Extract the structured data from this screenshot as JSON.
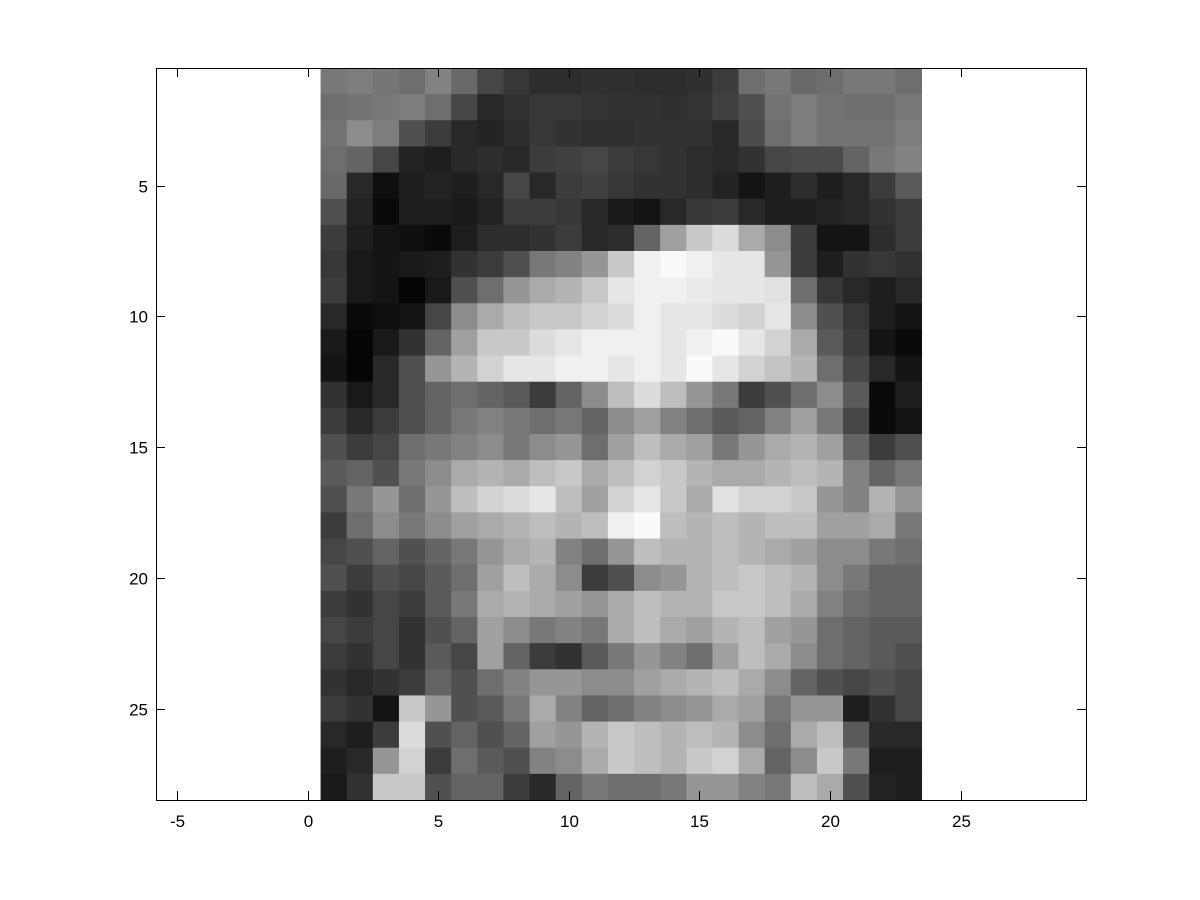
{
  "figure": {
    "background": "#ffffff"
  },
  "chart_data": {
    "type": "heatmap",
    "title": "",
    "xlabel": "",
    "ylabel": "",
    "colormap": "gray",
    "xlim": [
      -5.8,
      29.8
    ],
    "ylim": [
      0.5,
      28.5
    ],
    "y_direction": "reversed",
    "aspect": "equal",
    "grid": false,
    "box": true,
    "x_ticks": [
      -5,
      0,
      5,
      10,
      15,
      20,
      25
    ],
    "x_tick_labels": [
      "-5",
      "0",
      "5",
      "10",
      "15",
      "20",
      "25"
    ],
    "y_ticks": [
      5,
      10,
      15,
      20,
      25
    ],
    "y_tick_labels": [
      "5",
      "10",
      "15",
      "20",
      "25"
    ],
    "value_range": [
      0,
      255
    ],
    "columns": 23,
    "rows": 28,
    "values": [
      [
        120,
        125,
        118,
        110,
        130,
        105,
        70,
        55,
        45,
        45,
        48,
        48,
        45,
        45,
        48,
        60,
        110,
        120,
        105,
        110,
        120,
        120,
        110
      ],
      [
        110,
        115,
        120,
        125,
        110,
        70,
        40,
        50,
        55,
        55,
        52,
        50,
        50,
        48,
        52,
        65,
        80,
        115,
        125,
        115,
        110,
        110,
        120
      ],
      [
        115,
        140,
        125,
        80,
        60,
        40,
        35,
        45,
        55,
        50,
        48,
        48,
        50,
        50,
        50,
        40,
        75,
        110,
        125,
        115,
        115,
        115,
        125
      ],
      [
        110,
        100,
        70,
        35,
        30,
        40,
        45,
        40,
        60,
        65,
        70,
        60,
        55,
        50,
        45,
        40,
        50,
        70,
        75,
        75,
        100,
        120,
        130
      ],
      [
        105,
        40,
        15,
        30,
        35,
        30,
        40,
        70,
        40,
        60,
        65,
        55,
        50,
        50,
        45,
        35,
        20,
        30,
        45,
        30,
        40,
        60,
        90
      ],
      [
        80,
        35,
        10,
        30,
        30,
        25,
        35,
        60,
        60,
        55,
        40,
        25,
        20,
        40,
        55,
        60,
        40,
        30,
        30,
        35,
        40,
        50,
        60
      ],
      [
        60,
        30,
        20,
        15,
        10,
        30,
        45,
        45,
        50,
        60,
        40,
        45,
        100,
        160,
        200,
        220,
        170,
        140,
        60,
        20,
        20,
        45,
        60
      ],
      [
        55,
        25,
        20,
        25,
        30,
        50,
        60,
        80,
        120,
        130,
        150,
        200,
        240,
        250,
        240,
        230,
        230,
        150,
        60,
        30,
        50,
        55,
        50
      ],
      [
        60,
        25,
        20,
        5,
        25,
        80,
        110,
        150,
        170,
        180,
        200,
        230,
        240,
        240,
        235,
        230,
        230,
        225,
        110,
        55,
        40,
        30,
        40
      ],
      [
        40,
        10,
        15,
        20,
        70,
        140,
        170,
        190,
        200,
        200,
        210,
        220,
        240,
        230,
        230,
        220,
        210,
        230,
        140,
        80,
        55,
        30,
        20
      ],
      [
        25,
        5,
        25,
        50,
        100,
        160,
        200,
        200,
        220,
        230,
        240,
        240,
        240,
        230,
        240,
        250,
        230,
        210,
        170,
        90,
        60,
        20,
        10
      ],
      [
        20,
        5,
        40,
        80,
        150,
        180,
        210,
        230,
        230,
        240,
        240,
        230,
        240,
        230,
        250,
        230,
        210,
        195,
        180,
        110,
        70,
        40,
        20
      ],
      [
        50,
        25,
        40,
        80,
        100,
        110,
        100,
        90,
        60,
        100,
        140,
        190,
        220,
        190,
        150,
        120,
        60,
        80,
        110,
        140,
        90,
        10,
        30
      ],
      [
        60,
        40,
        60,
        80,
        100,
        120,
        130,
        120,
        110,
        120,
        100,
        140,
        160,
        130,
        110,
        90,
        100,
        130,
        160,
        120,
        70,
        10,
        20
      ],
      [
        80,
        60,
        70,
        110,
        120,
        130,
        140,
        120,
        140,
        150,
        110,
        160,
        190,
        170,
        160,
        120,
        150,
        170,
        180,
        160,
        100,
        60,
        80
      ],
      [
        90,
        100,
        80,
        120,
        140,
        170,
        180,
        170,
        190,
        200,
        170,
        190,
        210,
        200,
        180,
        170,
        170,
        180,
        190,
        180,
        130,
        100,
        120
      ],
      [
        80,
        120,
        150,
        110,
        150,
        190,
        210,
        220,
        230,
        190,
        160,
        210,
        230,
        200,
        170,
        225,
        210,
        210,
        200,
        150,
        130,
        180,
        150
      ],
      [
        60,
        110,
        140,
        120,
        140,
        160,
        170,
        180,
        190,
        180,
        190,
        240,
        250,
        190,
        180,
        190,
        180,
        190,
        190,
        160,
        160,
        170,
        120
      ],
      [
        70,
        80,
        100,
        80,
        100,
        120,
        150,
        170,
        180,
        130,
        110,
        150,
        190,
        180,
        180,
        190,
        180,
        170,
        160,
        140,
        140,
        120,
        110
      ],
      [
        80,
        60,
        80,
        70,
        90,
        110,
        160,
        190,
        170,
        140,
        60,
        80,
        140,
        150,
        180,
        190,
        200,
        190,
        180,
        140,
        120,
        100,
        100
      ],
      [
        60,
        50,
        70,
        60,
        90,
        120,
        170,
        180,
        170,
        160,
        150,
        170,
        190,
        180,
        180,
        200,
        200,
        190,
        170,
        130,
        110,
        100,
        100
      ],
      [
        70,
        60,
        70,
        50,
        80,
        100,
        160,
        140,
        120,
        130,
        120,
        170,
        190,
        170,
        160,
        180,
        190,
        160,
        150,
        110,
        100,
        90,
        90
      ],
      [
        60,
        50,
        70,
        50,
        90,
        70,
        160,
        100,
        60,
        50,
        90,
        120,
        150,
        130,
        110,
        160,
        190,
        170,
        140,
        110,
        100,
        90,
        80
      ],
      [
        50,
        40,
        50,
        60,
        100,
        80,
        110,
        130,
        150,
        150,
        140,
        140,
        160,
        170,
        180,
        190,
        170,
        140,
        100,
        80,
        70,
        80,
        70
      ],
      [
        60,
        50,
        20,
        200,
        150,
        80,
        90,
        120,
        170,
        130,
        100,
        110,
        130,
        140,
        150,
        170,
        160,
        120,
        150,
        150,
        30,
        50,
        70
      ],
      [
        40,
        30,
        60,
        220,
        80,
        100,
        80,
        100,
        160,
        150,
        180,
        200,
        190,
        180,
        190,
        180,
        140,
        110,
        170,
        190,
        90,
        40,
        40
      ],
      [
        30,
        40,
        150,
        210,
        60,
        110,
        90,
        80,
        130,
        140,
        170,
        200,
        190,
        180,
        200,
        210,
        170,
        100,
        140,
        200,
        120,
        30,
        30
      ],
      [
        25,
        50,
        200,
        200,
        80,
        100,
        100,
        60,
        40,
        100,
        120,
        110,
        110,
        120,
        150,
        150,
        130,
        120,
        190,
        170,
        80,
        35,
        30
      ]
    ]
  }
}
